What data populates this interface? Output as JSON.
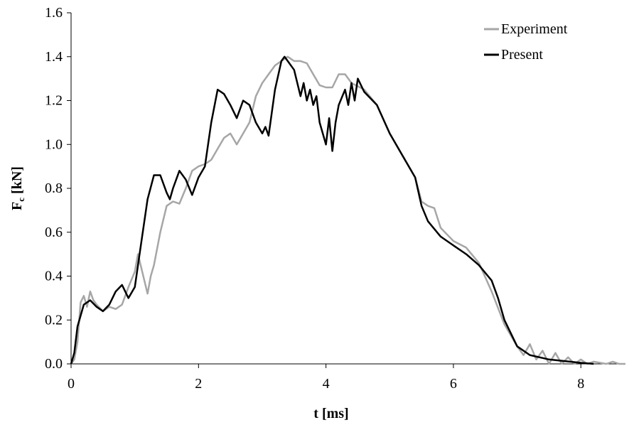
{
  "chart_data": {
    "type": "line",
    "xlabel": "t [ms]",
    "ylabel": {
      "main": "F",
      "sub": "c",
      "unit": " [kN]"
    },
    "xlim": [
      0,
      8.7
    ],
    "ylim": [
      0,
      1.6
    ],
    "x_ticks": [
      0,
      2,
      4,
      6,
      8
    ],
    "x_tick_labels": [
      "0",
      "2",
      "4",
      "6",
      "8"
    ],
    "y_ticks": [
      0,
      0.2,
      0.4,
      0.6,
      0.8,
      1.0,
      1.2,
      1.4,
      1.6
    ],
    "y_tick_labels": [
      "0.0",
      "0.2",
      "0.4",
      "0.6",
      "0.8",
      "1.0",
      "1.2",
      "1.4",
      "1.6"
    ],
    "grid": false,
    "legend_position": "top-right",
    "series": [
      {
        "name": "Experiment",
        "color": "#a6a6a6",
        "points": [
          [
            0,
            0
          ],
          [
            0.05,
            0.02
          ],
          [
            0.1,
            0.1
          ],
          [
            0.15,
            0.28
          ],
          [
            0.2,
            0.31
          ],
          [
            0.25,
            0.26
          ],
          [
            0.3,
            0.33
          ],
          [
            0.35,
            0.29
          ],
          [
            0.4,
            0.27
          ],
          [
            0.5,
            0.24
          ],
          [
            0.6,
            0.26
          ],
          [
            0.7,
            0.25
          ],
          [
            0.8,
            0.27
          ],
          [
            0.9,
            0.35
          ],
          [
            1.0,
            0.42
          ],
          [
            1.05,
            0.5
          ],
          [
            1.1,
            0.44
          ],
          [
            1.15,
            0.38
          ],
          [
            1.2,
            0.32
          ],
          [
            1.25,
            0.4
          ],
          [
            1.3,
            0.45
          ],
          [
            1.4,
            0.6
          ],
          [
            1.5,
            0.72
          ],
          [
            1.6,
            0.74
          ],
          [
            1.7,
            0.73
          ],
          [
            1.8,
            0.8
          ],
          [
            1.9,
            0.88
          ],
          [
            2.0,
            0.9
          ],
          [
            2.1,
            0.91
          ],
          [
            2.2,
            0.93
          ],
          [
            2.3,
            0.98
          ],
          [
            2.4,
            1.03
          ],
          [
            2.5,
            1.05
          ],
          [
            2.6,
            1.0
          ],
          [
            2.7,
            1.05
          ],
          [
            2.8,
            1.1
          ],
          [
            2.9,
            1.22
          ],
          [
            3.0,
            1.28
          ],
          [
            3.1,
            1.32
          ],
          [
            3.2,
            1.36
          ],
          [
            3.3,
            1.38
          ],
          [
            3.4,
            1.4
          ],
          [
            3.5,
            1.38
          ],
          [
            3.6,
            1.38
          ],
          [
            3.7,
            1.37
          ],
          [
            3.8,
            1.32
          ],
          [
            3.9,
            1.27
          ],
          [
            4.0,
            1.26
          ],
          [
            4.1,
            1.26
          ],
          [
            4.2,
            1.32
          ],
          [
            4.3,
            1.32
          ],
          [
            4.4,
            1.28
          ],
          [
            4.6,
            1.25
          ],
          [
            4.8,
            1.18
          ],
          [
            5.0,
            1.05
          ],
          [
            5.2,
            0.95
          ],
          [
            5.4,
            0.85
          ],
          [
            5.5,
            0.74
          ],
          [
            5.6,
            0.72
          ],
          [
            5.7,
            0.71
          ],
          [
            5.8,
            0.62
          ],
          [
            6.0,
            0.56
          ],
          [
            6.2,
            0.53
          ],
          [
            6.4,
            0.46
          ],
          [
            6.6,
            0.33
          ],
          [
            6.8,
            0.18
          ],
          [
            7.0,
            0.08
          ],
          [
            7.1,
            0.04
          ],
          [
            7.2,
            0.09
          ],
          [
            7.3,
            0.02
          ],
          [
            7.4,
            0.06
          ],
          [
            7.5,
            0.0
          ],
          [
            7.6,
            0.05
          ],
          [
            7.7,
            0.0
          ],
          [
            7.8,
            0.03
          ],
          [
            7.9,
            0.0
          ],
          [
            8.0,
            0.02
          ],
          [
            8.1,
            0.0
          ],
          [
            8.2,
            0.01
          ],
          [
            8.4,
            0.0
          ],
          [
            8.5,
            0.01
          ],
          [
            8.6,
            0.0
          ],
          [
            8.7,
            0.0
          ]
        ]
      },
      {
        "name": "Present",
        "color": "#000000",
        "points": [
          [
            0,
            0
          ],
          [
            0.05,
            0.05
          ],
          [
            0.1,
            0.17
          ],
          [
            0.2,
            0.27
          ],
          [
            0.3,
            0.29
          ],
          [
            0.4,
            0.26
          ],
          [
            0.5,
            0.24
          ],
          [
            0.6,
            0.27
          ],
          [
            0.7,
            0.33
          ],
          [
            0.8,
            0.36
          ],
          [
            0.9,
            0.3
          ],
          [
            1.0,
            0.35
          ],
          [
            1.1,
            0.55
          ],
          [
            1.2,
            0.75
          ],
          [
            1.3,
            0.86
          ],
          [
            1.4,
            0.86
          ],
          [
            1.5,
            0.78
          ],
          [
            1.55,
            0.75
          ],
          [
            1.6,
            0.8
          ],
          [
            1.7,
            0.88
          ],
          [
            1.8,
            0.84
          ],
          [
            1.9,
            0.77
          ],
          [
            2.0,
            0.85
          ],
          [
            2.1,
            0.9
          ],
          [
            2.2,
            1.1
          ],
          [
            2.3,
            1.25
          ],
          [
            2.4,
            1.23
          ],
          [
            2.5,
            1.18
          ],
          [
            2.6,
            1.12
          ],
          [
            2.7,
            1.2
          ],
          [
            2.8,
            1.18
          ],
          [
            2.9,
            1.1
          ],
          [
            3.0,
            1.05
          ],
          [
            3.05,
            1.08
          ],
          [
            3.1,
            1.04
          ],
          [
            3.2,
            1.25
          ],
          [
            3.3,
            1.38
          ],
          [
            3.35,
            1.4
          ],
          [
            3.4,
            1.38
          ],
          [
            3.5,
            1.34
          ],
          [
            3.55,
            1.28
          ],
          [
            3.6,
            1.22
          ],
          [
            3.65,
            1.28
          ],
          [
            3.7,
            1.2
          ],
          [
            3.75,
            1.25
          ],
          [
            3.8,
            1.18
          ],
          [
            3.85,
            1.22
          ],
          [
            3.9,
            1.1
          ],
          [
            4.0,
            1.0
          ],
          [
            4.05,
            1.12
          ],
          [
            4.1,
            0.97
          ],
          [
            4.15,
            1.1
          ],
          [
            4.2,
            1.18
          ],
          [
            4.3,
            1.25
          ],
          [
            4.35,
            1.18
          ],
          [
            4.4,
            1.28
          ],
          [
            4.45,
            1.2
          ],
          [
            4.5,
            1.3
          ],
          [
            4.6,
            1.24
          ],
          [
            4.8,
            1.18
          ],
          [
            5.0,
            1.05
          ],
          [
            5.2,
            0.95
          ],
          [
            5.4,
            0.85
          ],
          [
            5.5,
            0.72
          ],
          [
            5.6,
            0.65
          ],
          [
            5.8,
            0.58
          ],
          [
            6.0,
            0.54
          ],
          [
            6.2,
            0.5
          ],
          [
            6.4,
            0.45
          ],
          [
            6.6,
            0.38
          ],
          [
            6.7,
            0.3
          ],
          [
            6.8,
            0.2
          ],
          [
            7.0,
            0.08
          ],
          [
            7.2,
            0.04
          ],
          [
            7.5,
            0.02
          ],
          [
            8.0,
            0.005
          ],
          [
            8.2,
            0.0
          ]
        ]
      }
    ]
  }
}
